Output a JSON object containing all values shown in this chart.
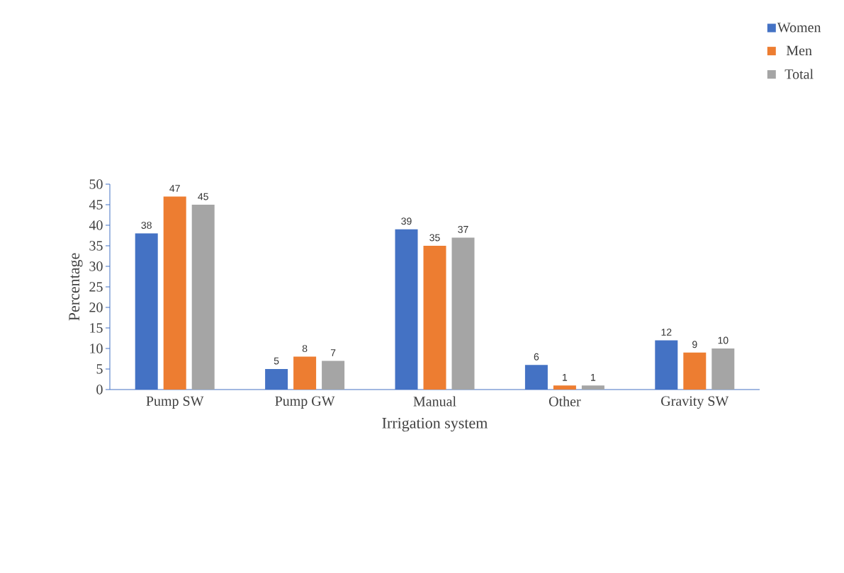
{
  "chart_data": {
    "type": "bar",
    "xlabel": "Irrigation system",
    "ylabel": "Percentage",
    "categories": [
      "Pump SW",
      "Pump GW",
      "Manual",
      "Other",
      "Gravity SW"
    ],
    "series": [
      {
        "name": "Women",
        "color": "#4472c4",
        "values": [
          38,
          5,
          39,
          6,
          12
        ]
      },
      {
        "name": "Men",
        "color": "#ed7d31",
        "values": [
          47,
          8,
          35,
          1,
          9
        ]
      },
      {
        "name": "Total",
        "color": "#a5a5a5",
        "values": [
          45,
          7,
          37,
          1,
          10
        ]
      }
    ],
    "ylim": [
      0,
      50
    ],
    "yticks": [
      0,
      5,
      10,
      15,
      20,
      25,
      30,
      35,
      40,
      45,
      50
    ],
    "data_labels": true,
    "legend": "top right",
    "grid": false
  }
}
